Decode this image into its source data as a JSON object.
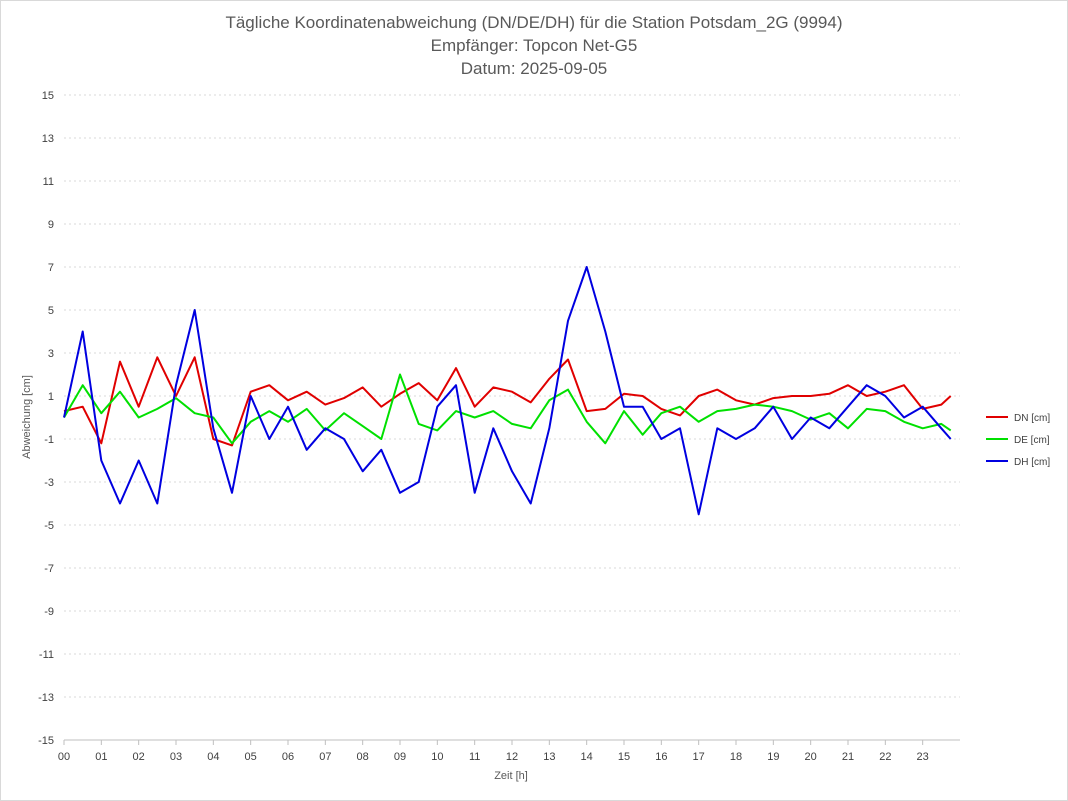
{
  "chart_data": {
    "type": "line",
    "title_lines": [
      "Tägliche Koordinatenabweichung (DN/DE/DH) für die Station Potsdam_2G (9994)",
      "Empfänger: Topcon Net-G5",
      "Datum: 2025-09-05"
    ],
    "xlabel": "Zeit [h]",
    "ylabel": "Abweichung [cm]",
    "xlim": [
      0,
      24
    ],
    "ylim": [
      -15,
      15
    ],
    "x_ticks": [
      "00",
      "01",
      "02",
      "03",
      "04",
      "05",
      "06",
      "07",
      "08",
      "09",
      "10",
      "11",
      "12",
      "13",
      "14",
      "15",
      "16",
      "17",
      "18",
      "19",
      "20",
      "21",
      "22",
      "23"
    ],
    "y_ticks": [
      15,
      13,
      11,
      9,
      7,
      5,
      3,
      1,
      -1,
      -3,
      -5,
      -7,
      -9,
      -11,
      -13,
      -15
    ],
    "grid": "horizontal dotted",
    "legend_position": "right",
    "x_hours": [
      0,
      0.5,
      1,
      1.5,
      2,
      2.5,
      3,
      3.5,
      4,
      4.5,
      5,
      5.5,
      6,
      6.5,
      7,
      7.5,
      8,
      8.5,
      9,
      9.5,
      10,
      10.5,
      11,
      11.5,
      12,
      12.5,
      13,
      13.5,
      14,
      14.5,
      15,
      15.5,
      16,
      16.5,
      17,
      17.5,
      18,
      18.5,
      19,
      19.5,
      20,
      20.5,
      21,
      21.5,
      22,
      22.5,
      23,
      23.5,
      23.75
    ],
    "series": [
      {
        "name": "DN [cm]",
        "color": "#e00000",
        "values": [
          0.3,
          0.5,
          -1.2,
          2.6,
          0.5,
          2.8,
          1.0,
          2.8,
          -1.0,
          -1.3,
          1.2,
          1.5,
          0.8,
          1.2,
          0.6,
          0.9,
          1.4,
          0.5,
          1.1,
          1.6,
          0.8,
          2.3,
          0.5,
          1.4,
          1.2,
          0.7,
          1.8,
          2.7,
          0.3,
          0.4,
          1.1,
          1.0,
          0.4,
          0.1,
          1.0,
          1.3,
          0.8,
          0.6,
          0.9,
          1.0,
          1.0,
          1.1,
          1.5,
          1.0,
          1.2,
          1.5,
          0.4,
          0.6,
          1.0
        ]
      },
      {
        "name": "DE [cm]",
        "color": "#00e000",
        "values": [
          0.0,
          1.5,
          0.2,
          1.2,
          0.0,
          0.4,
          0.9,
          0.2,
          0.0,
          -1.2,
          -0.2,
          0.3,
          -0.2,
          0.4,
          -0.6,
          0.2,
          -0.4,
          -1.0,
          2.0,
          -0.3,
          -0.6,
          0.3,
          0.0,
          0.3,
          -0.3,
          -0.5,
          0.8,
          1.3,
          -0.2,
          -1.2,
          0.3,
          -0.8,
          0.2,
          0.5,
          -0.2,
          0.3,
          0.4,
          0.6,
          0.5,
          0.3,
          -0.1,
          0.2,
          -0.5,
          0.4,
          0.3,
          -0.2,
          -0.5,
          -0.3,
          -0.6
        ]
      },
      {
        "name": "DH [cm]",
        "color": "#0000e0",
        "values": [
          0.0,
          4.0,
          -2.0,
          -4.0,
          -2.0,
          -4.0,
          1.5,
          5.0,
          -0.5,
          -3.5,
          1.0,
          -1.0,
          0.5,
          -1.5,
          -0.5,
          -1.0,
          -2.5,
          -1.5,
          -3.5,
          -3.0,
          0.5,
          1.5,
          -3.5,
          -0.5,
          -2.5,
          -4.0,
          -0.5,
          4.5,
          7.0,
          4.0,
          0.5,
          0.5,
          -1.0,
          -0.5,
          -4.5,
          -0.5,
          -1.0,
          -0.5,
          0.5,
          -1.0,
          0.0,
          -0.5,
          0.5,
          1.5,
          1.0,
          0.0,
          0.5,
          -0.5,
          -1.0
        ]
      }
    ]
  }
}
